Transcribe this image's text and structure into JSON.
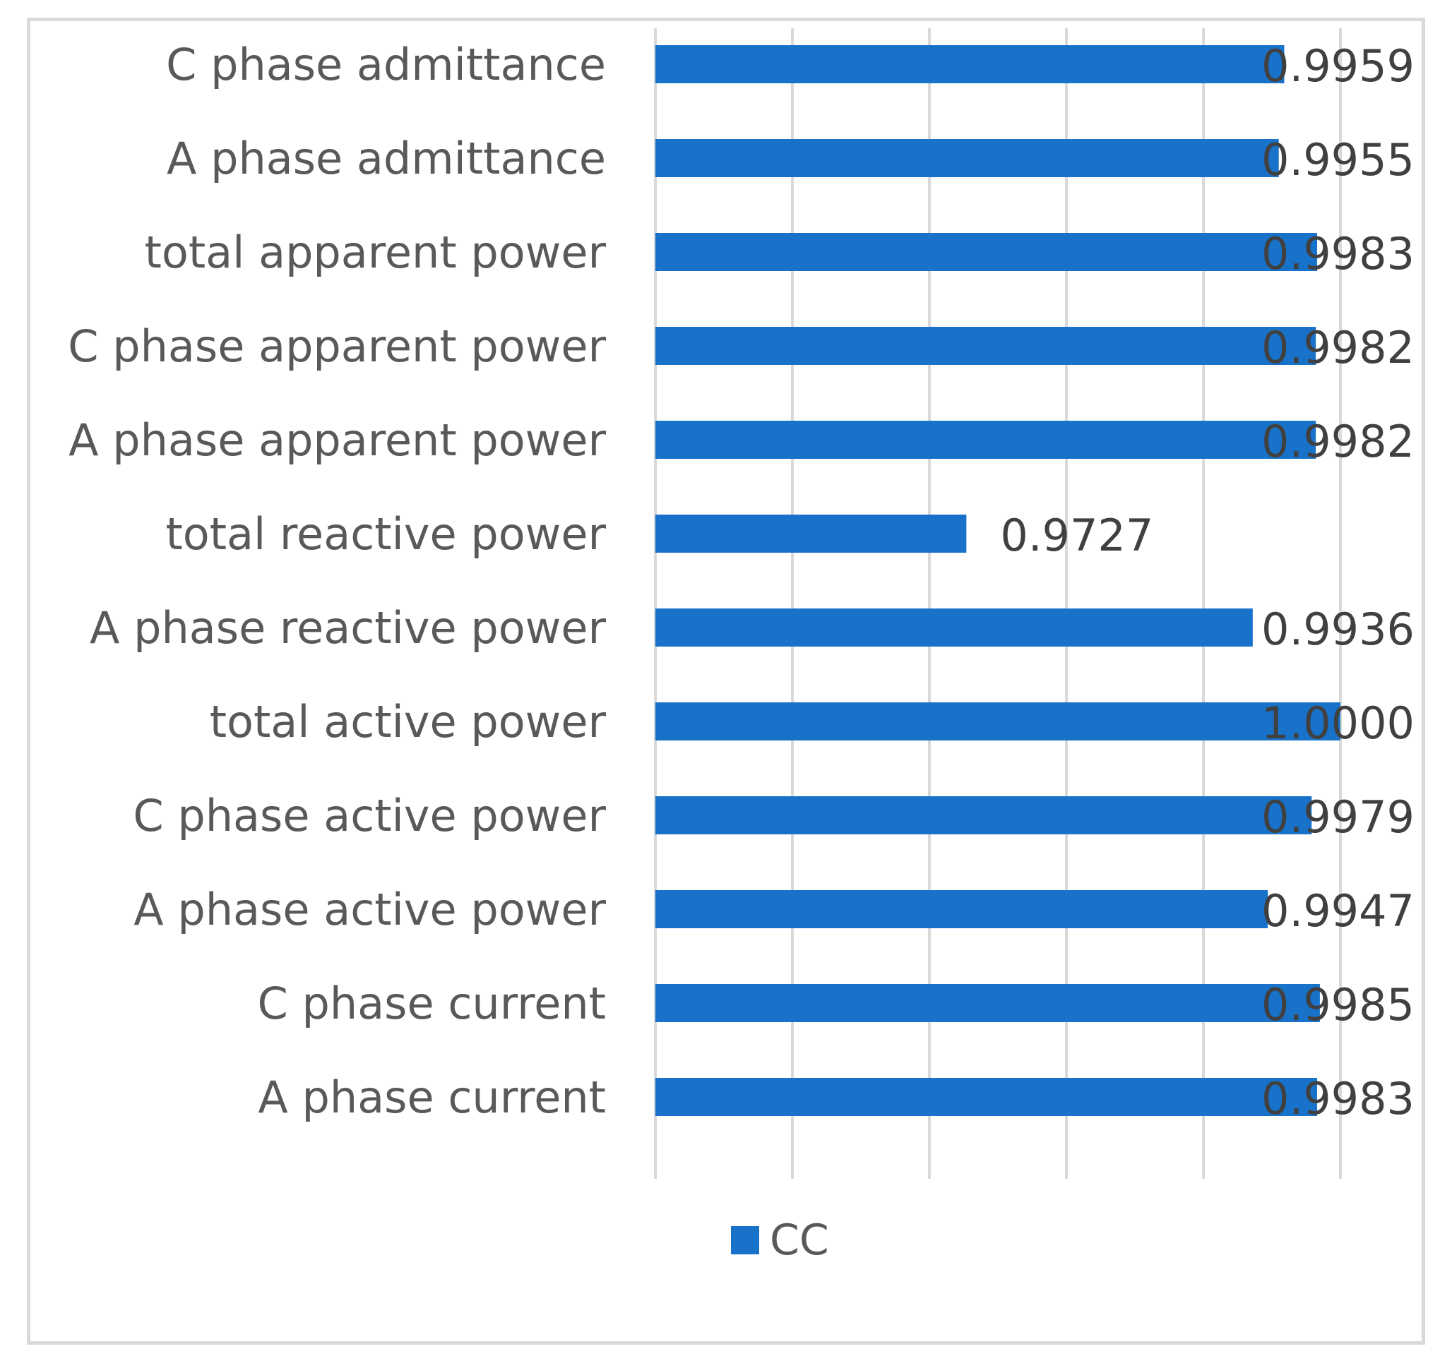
{
  "chart_data": {
    "type": "bar",
    "orientation": "horizontal",
    "categories": [
      "C phase admittance",
      "A phase admittance",
      "total apparent power",
      "C phase apparent power",
      "A phase apparent power",
      "total reactive power",
      "A phase reactive power",
      "total active power",
      "C phase active power",
      "A phase active power",
      "C phase current",
      "A phase current"
    ],
    "series": [
      {
        "name": "CC",
        "color": "#1872c9",
        "values": [
          0.9959,
          0.9955,
          0.9983,
          0.9982,
          0.9982,
          0.9727,
          0.9936,
          1.0,
          0.9979,
          0.9947,
          0.9985,
          0.9983
        ],
        "labels": [
          "0.9959",
          "0.9955",
          "0.9983",
          "0.9982",
          "0.9982",
          "0.9727",
          "0.9936",
          "1.0000",
          "0.9979",
          "0.9947",
          "0.9985",
          "0.9983"
        ]
      }
    ],
    "xlim": [
      0.95,
      1.0
    ],
    "x_gridlines": [
      0.95,
      0.96,
      0.97,
      0.98,
      0.99,
      1.0
    ],
    "x_tick_labels_shown": false,
    "grid": true,
    "legend": "bottom"
  }
}
